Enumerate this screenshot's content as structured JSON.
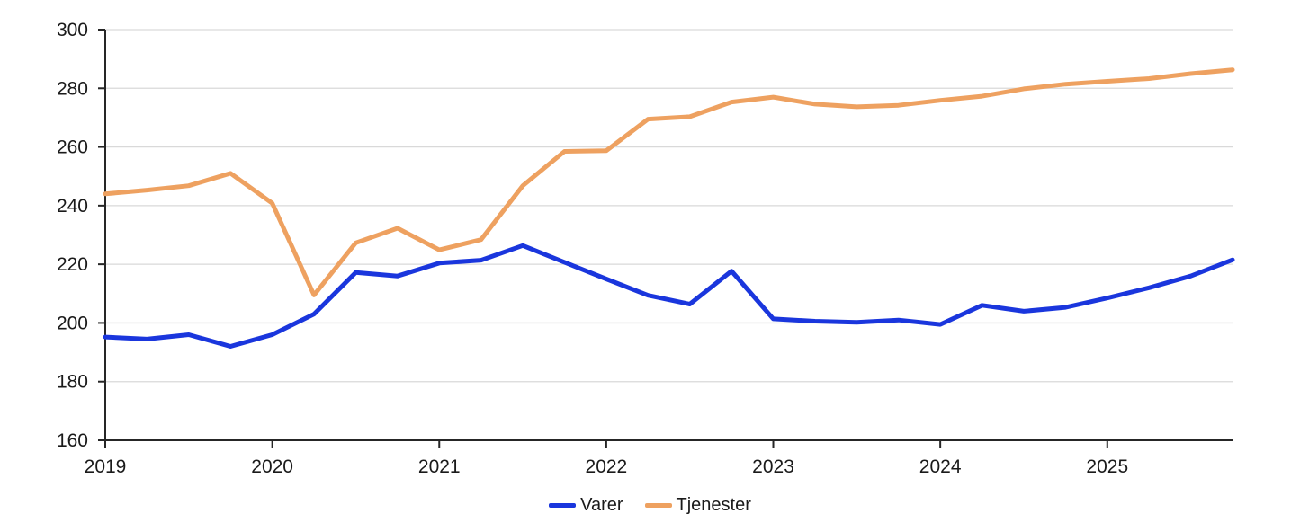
{
  "chart_data": {
    "type": "line",
    "title": "",
    "x_unit": "quarterly",
    "x_start": "2019 Q1",
    "x_end": "2025 Q4",
    "x_tick_labels": [
      "2019",
      "2020",
      "2021",
      "2022",
      "2023",
      "2024",
      "2025"
    ],
    "points_per_year": 4,
    "ylim": [
      160,
      300
    ],
    "y_ticks": [
      160,
      180,
      200,
      220,
      240,
      260,
      280,
      300
    ],
    "y_tick_labels": [
      "160",
      "180",
      "200",
      "220",
      "240",
      "260",
      "280",
      "300"
    ],
    "grid": "horizontal-only",
    "legend_position": "bottom-center",
    "colors": {
      "axis": "#262626",
      "gridline": "#d9d9d9",
      "text": "#1a1a1a"
    },
    "series": [
      {
        "name": "Varer",
        "color": "#1a36dd",
        "values": [
          195.2,
          194.5,
          196,
          192,
          196,
          203,
          217.2,
          216,
          220.4,
          221.4,
          226.4,
          220.7,
          215,
          209.4,
          206.4,
          217.7,
          201.4,
          200.6,
          200.2,
          201,
          199.5,
          206,
          204,
          205.3,
          208.5,
          212,
          216,
          221.5
        ]
      },
      {
        "name": "Tjenester",
        "color": "#eea160",
        "values": [
          244,
          245.3,
          246.8,
          251,
          240.8,
          209.5,
          227.3,
          232.3,
          224.9,
          228.4,
          246.8,
          258.5,
          258.7,
          269.5,
          270.3,
          275.3,
          277,
          274.6,
          273.7,
          274.2,
          275.9,
          277.3,
          279.8,
          281.4,
          282.4,
          283.3,
          285,
          286.3
        ]
      }
    ]
  }
}
